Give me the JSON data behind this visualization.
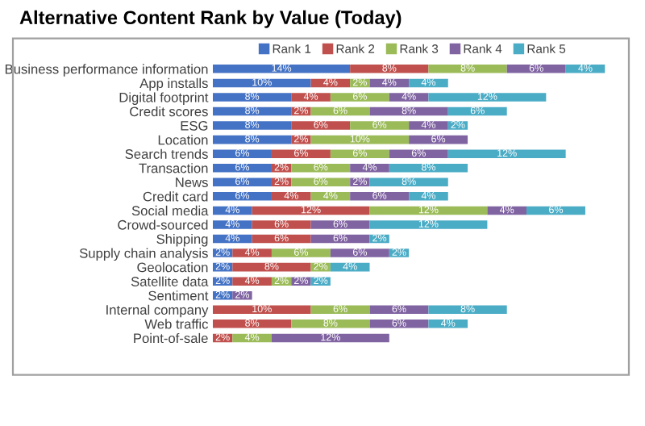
{
  "chart_data": {
    "type": "bar",
    "orientation": "horizontal",
    "stacked": true,
    "title": "Alternative Content Rank by Value (Today)",
    "legend": "top",
    "grid": false,
    "categories": [
      "Business performance information",
      "App installs",
      "Digital footprint",
      "Credit scores",
      "ESG",
      "Location",
      "Search trends",
      "Transaction",
      "News",
      "Credit card",
      "Social media",
      "Crowd-sourced",
      "Shipping",
      "Supply chain analysis",
      "Geolocation",
      "Satellite data",
      "Sentiment",
      "Internal company",
      "Web traffic",
      "Point-of-sale"
    ],
    "series": [
      {
        "name": "Rank 1",
        "color": "#4472c4",
        "values": [
          14,
          10,
          8,
          8,
          8,
          8,
          6,
          6,
          6,
          6,
          4,
          4,
          4,
          2,
          2,
          2,
          2,
          null,
          null,
          null
        ],
        "value_labels": [
          "14%",
          "10%",
          "8%",
          "8%",
          "8%",
          "8%",
          "6%",
          "6%",
          "6%",
          "6%",
          "4%",
          "4%",
          "4%",
          "2%",
          "2%",
          "2%",
          "2%",
          null,
          null,
          null
        ]
      },
      {
        "name": "Rank 2",
        "color": "#c0504d",
        "values": [
          8,
          4,
          4,
          2,
          6,
          2,
          6,
          2,
          2,
          4,
          12,
          6,
          6,
          4,
          8,
          4,
          null,
          10,
          8,
          2
        ],
        "value_labels": [
          "8%",
          "4%",
          "4%",
          "2%",
          "6%",
          "2%",
          "6%",
          "2%",
          "2%",
          "4%",
          "12%",
          "6%",
          "6%",
          "4%",
          "8%",
          "4%",
          null,
          "10%",
          "8%",
          "2%"
        ]
      },
      {
        "name": "Rank 3",
        "color": "#9bbb59",
        "values": [
          8,
          2,
          6,
          6,
          6,
          10,
          6,
          6,
          6,
          4,
          12,
          null,
          null,
          6,
          2,
          2,
          null,
          6,
          8,
          4
        ],
        "value_labels": [
          "8%",
          "2%",
          "6%",
          "6%",
          "6%",
          "10%",
          "6%",
          "6%",
          "6%",
          "4%",
          "12%",
          null,
          null,
          "6%",
          "2%",
          "2%",
          null,
          "6%",
          "8%",
          "4%"
        ]
      },
      {
        "name": "Rank 4",
        "color": "#8064a2",
        "values": [
          6,
          4,
          4,
          8,
          4,
          6,
          6,
          4,
          2,
          6,
          4,
          6,
          6,
          6,
          null,
          2,
          2,
          6,
          6,
          12
        ],
        "value_labels": [
          "6%",
          "4%",
          "4%",
          "8%",
          "4%",
          "6%",
          "6%",
          "4%",
          "2%",
          "6%",
          "4%",
          "6%",
          "6%",
          "6%",
          null,
          "2%",
          "2%",
          "6%",
          "6%",
          "12%"
        ]
      },
      {
        "name": "Rank 5",
        "color": "#4bacc6",
        "values": [
          4,
          4,
          12,
          6,
          2,
          null,
          12,
          8,
          8,
          4,
          6,
          12,
          2,
          2,
          4,
          2,
          null,
          8,
          4,
          null
        ],
        "value_labels": [
          "4%",
          "4%",
          "12%",
          "6%",
          "2%",
          null,
          "12%",
          "8%",
          "8%",
          "4%",
          "6%",
          "12%",
          "2%",
          "2%",
          "4%",
          "2%",
          null,
          "8%",
          "4%",
          null
        ]
      }
    ]
  }
}
